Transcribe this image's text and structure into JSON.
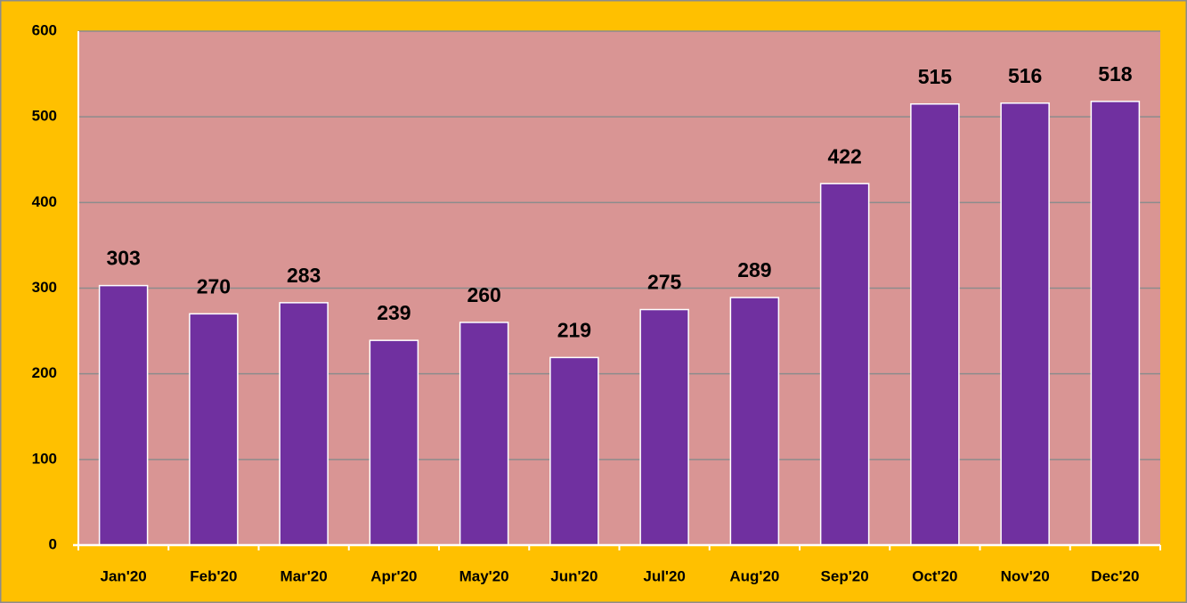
{
  "chart_data": {
    "type": "bar",
    "categories": [
      "Jan'20",
      "Feb'20",
      "Mar'20",
      "Apr'20",
      "May'20",
      "Jun'20",
      "Jul'20",
      "Aug'20",
      "Sep'20",
      "Oct'20",
      "Nov'20",
      "Dec'20"
    ],
    "values": [
      303,
      270,
      283,
      239,
      260,
      219,
      275,
      289,
      422,
      515,
      516,
      518
    ],
    "color": "#7030a0",
    "ylim": [
      0,
      600
    ],
    "yticks": [
      0,
      100,
      200,
      300,
      400,
      500,
      600
    ],
    "grid": true
  }
}
